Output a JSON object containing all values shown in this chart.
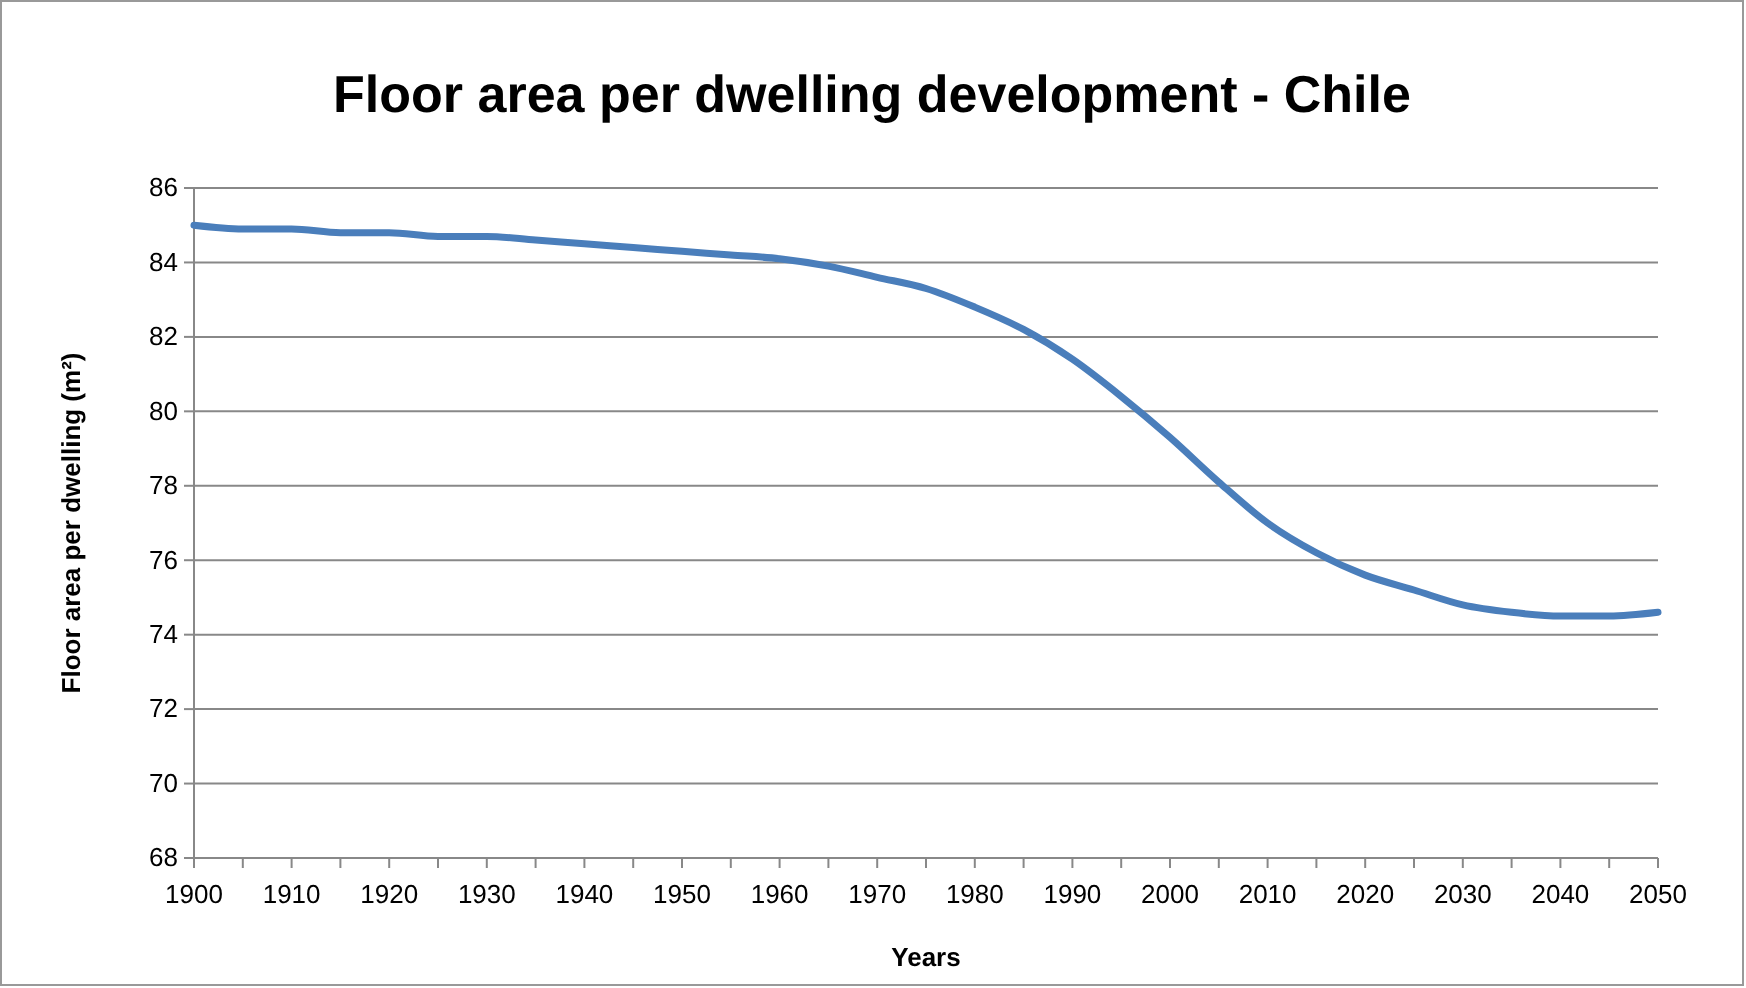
{
  "chart_data": {
    "type": "line",
    "title": "Floor area per dwelling development - Chile",
    "xlabel": "Years",
    "ylabel": "Floor area per dwelling (m²)",
    "x": [
      1900,
      1905,
      1910,
      1915,
      1920,
      1925,
      1930,
      1935,
      1940,
      1945,
      1950,
      1955,
      1960,
      1965,
      1970,
      1975,
      1980,
      1985,
      1990,
      1995,
      2000,
      2005,
      2010,
      2015,
      2020,
      2025,
      2030,
      2035,
      2040,
      2045,
      2050
    ],
    "series": [
      {
        "color": "#4a7ebb",
        "values": [
          85.0,
          84.9,
          84.9,
          84.8,
          84.8,
          84.7,
          84.7,
          84.6,
          84.5,
          84.4,
          84.3,
          84.2,
          84.1,
          83.9,
          83.6,
          83.3,
          82.8,
          82.2,
          81.4,
          80.4,
          79.3,
          78.1,
          77.0,
          76.2,
          75.6,
          75.2,
          74.8,
          74.6,
          74.5,
          74.5,
          74.6
        ]
      }
    ],
    "xlim": [
      1900,
      2050
    ],
    "xticks": [
      1900,
      {
        "value": 1905,
        "label": null
      },
      1910,
      {
        "value": 1915,
        "label": null
      },
      1920,
      {
        "value": 1925,
        "label": null
      },
      1930,
      {
        "value": 1935,
        "label": null
      },
      1940,
      {
        "value": 1945,
        "label": null
      },
      1950,
      {
        "value": 1955,
        "label": null
      },
      1960,
      {
        "value": 1965,
        "label": null
      },
      1970,
      {
        "value": 1975,
        "label": null
      },
      1980,
      {
        "value": 1985,
        "label": null
      },
      1990,
      {
        "value": 1995,
        "label": null
      },
      2000,
      {
        "value": 2005,
        "label": null
      },
      2010,
      {
        "value": 2015,
        "label": null
      },
      2020,
      {
        "value": 2025,
        "label": null
      },
      2030,
      {
        "value": 2035,
        "label": null
      },
      2040,
      {
        "value": 2045,
        "label": null
      },
      2050
    ],
    "ylim": [
      68,
      86
    ],
    "yticks": [
      68,
      70,
      72,
      74,
      76,
      78,
      80,
      82,
      84,
      86
    ],
    "grid": "y",
    "marker": "none",
    "line_style": "solid"
  }
}
